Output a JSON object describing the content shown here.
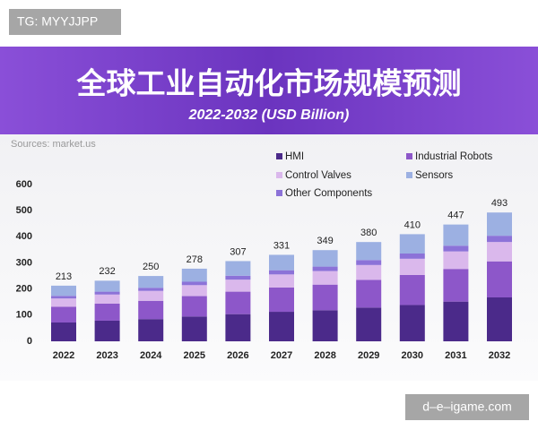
{
  "watermarks": [
    "TG: MYYJJPP",
    "d–e–igame.com"
  ],
  "chart_data": {
    "type": "stacked-bar",
    "title": "全球工业自动化市场规模预测",
    "subtitle": "2022-2032 (USD Billion)",
    "source": "Sources: market.us",
    "categories": [
      "2022",
      "2023",
      "2024",
      "2025",
      "2026",
      "2027",
      "2028",
      "2029",
      "2030",
      "2031",
      "2032"
    ],
    "totals": [
      213,
      232,
      250,
      278,
      307,
      331,
      349,
      380,
      410,
      447,
      493
    ],
    "series": [
      {
        "name": "HMI",
        "color": "#4b2a8a",
        "values": [
          72,
          79,
          85,
          95,
          104,
          113,
          119,
          129,
          139,
          152,
          168
        ]
      },
      {
        "name": "Industrial Robots",
        "color": "#8d57c9",
        "values": [
          60,
          65,
          70,
          78,
          86,
          93,
          98,
          106,
          115,
          125,
          138
        ]
      },
      {
        "name": "Control Valves",
        "color": "#dab8ec",
        "values": [
          32,
          35,
          38,
          42,
          46,
          50,
          52,
          57,
          62,
          67,
          74
        ]
      },
      {
        "name": "Other Components",
        "color": "#8c72d8",
        "values": [
          10,
          11,
          12,
          13,
          15,
          16,
          17,
          19,
          20,
          22,
          24
        ]
      },
      {
        "name": "Sensors",
        "color": "#9cb0e2",
        "values": [
          39,
          42,
          45,
          50,
          56,
          59,
          63,
          69,
          74,
          81,
          89
        ]
      }
    ],
    "ylim": [
      0,
      600
    ],
    "yticks": [
      0,
      100,
      200,
      300,
      400,
      500,
      600
    ]
  }
}
